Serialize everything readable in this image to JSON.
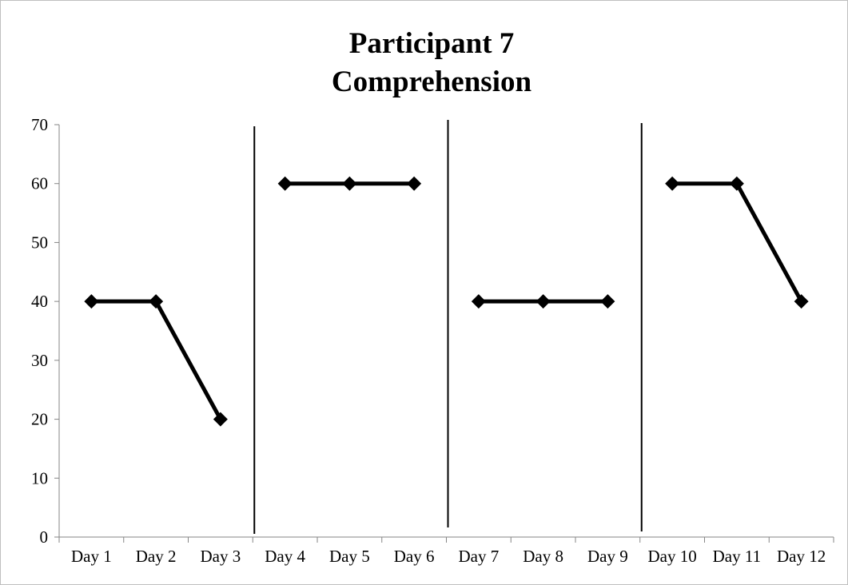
{
  "chart_data": {
    "type": "line",
    "title": [
      "Participant 7",
      "Comprehension"
    ],
    "xlabel": "",
    "ylabel": "",
    "categories": [
      "Day 1",
      "Day 2",
      "Day 3",
      "Day 4",
      "Day 5",
      "Day 6",
      "Day 7",
      "Day 8",
      "Day 9",
      "Day 10",
      "Day 11",
      "Day 12"
    ],
    "ylim": [
      0,
      70
    ],
    "yticks": [
      0,
      10,
      20,
      30,
      40,
      50,
      60,
      70
    ],
    "grid": false,
    "legend": "none",
    "phase_lines_between": [
      3,
      6,
      9
    ],
    "series": [
      {
        "segments": [
          {
            "x": [
              "Day 1",
              "Day 2",
              "Day 3"
            ],
            "values": [
              40,
              40,
              20
            ]
          },
          {
            "x": [
              "Day 4",
              "Day 5",
              "Day 6"
            ],
            "values": [
              60,
              60,
              60
            ]
          },
          {
            "x": [
              "Day 7",
              "Day 8",
              "Day 9"
            ],
            "values": [
              40,
              40,
              40
            ]
          },
          {
            "x": [
              "Day 10",
              "Day 11",
              "Day 12"
            ],
            "values": [
              60,
              60,
              40
            ]
          }
        ],
        "marker": "diamond",
        "color": "#000000"
      }
    ]
  }
}
